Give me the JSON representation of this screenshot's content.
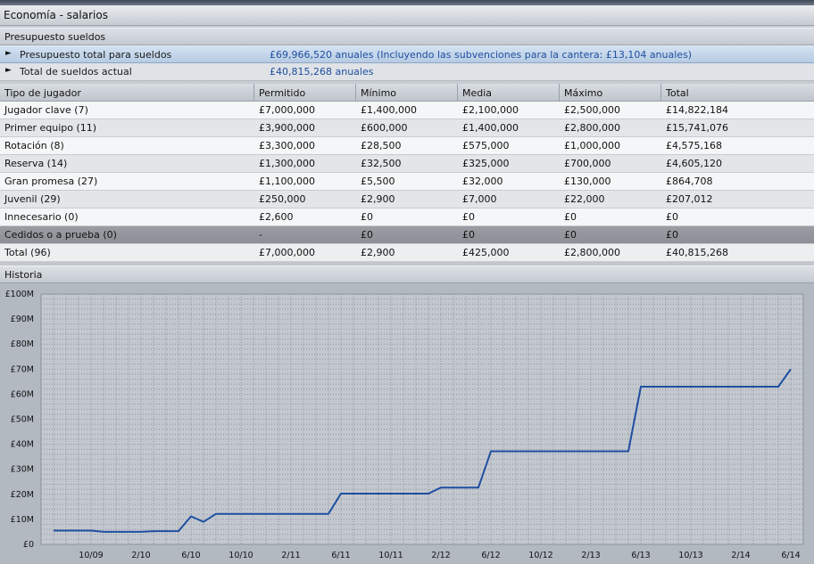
{
  "window": {
    "title": "Economía - salarios"
  },
  "budget": {
    "header": "Presupuesto sueldos",
    "rows": [
      {
        "label": "Presupuesto total para sueldos",
        "value": "£69,966,520 anuales (Incluyendo las subvenciones para la cantera: £13,104 anuales)"
      },
      {
        "label": "Total de sueldos actual",
        "value": "£40,815,268 anuales"
      }
    ]
  },
  "table": {
    "columns": [
      "Tipo de jugador",
      "Permitido",
      "Mínimo",
      "Media",
      "Máximo",
      "Total"
    ],
    "rows": [
      [
        "Jugador clave (7)",
        "£7,000,000",
        "£1,400,000",
        "£2,100,000",
        "£2,500,000",
        "£14,822,184"
      ],
      [
        "Primer equipo (11)",
        "£3,900,000",
        "£600,000",
        "£1,400,000",
        "£2,800,000",
        "£15,741,076"
      ],
      [
        "Rotación (8)",
        "£3,300,000",
        "£28,500",
        "£575,000",
        "£1,000,000",
        "£4,575,168"
      ],
      [
        "Reserva (14)",
        "£1,300,000",
        "£32,500",
        "£325,000",
        "£700,000",
        "£4,605,120"
      ],
      [
        "Gran promesa (27)",
        "£1,100,000",
        "£5,500",
        "£32,000",
        "£130,000",
        "£864,708"
      ],
      [
        "Juvenil (29)",
        "£250,000",
        "£2,900",
        "£7,000",
        "£22,000",
        "£207,012"
      ],
      [
        "Innecesario (0)",
        "£2,600",
        "£0",
        "£0",
        "£0",
        "£0"
      ],
      [
        "Cedidos o a prueba (0)",
        "-",
        "£0",
        "£0",
        "£0",
        "£0"
      ],
      [
        "Total  (96)",
        "£7,000,000",
        "£2,900",
        "£425,000",
        "£2,800,000",
        "£40,815,268"
      ]
    ]
  },
  "history": {
    "header": "Historia"
  },
  "colors": {
    "line": "#1f4fa0",
    "selected_row": "#c7d8ec",
    "value_text": "#1f4fa0"
  },
  "chart_data": {
    "type": "line",
    "title": "",
    "xlabel": "",
    "ylabel": "",
    "ylim": [
      0,
      100
    ],
    "y_unit": "£M",
    "y_tick_labels": [
      "£0",
      "£10M",
      "£20M",
      "£30M",
      "£40M",
      "£50M",
      "£60M",
      "£70M",
      "£80M",
      "£90M",
      "£100M"
    ],
    "x_tick_labels": [
      "10/09",
      "2/10",
      "6/10",
      "10/10",
      "2/11",
      "6/11",
      "10/11",
      "2/12",
      "6/12",
      "10/12",
      "2/13",
      "6/13",
      "10/13",
      "2/14",
      "6/14"
    ],
    "grid": true,
    "series": [
      {
        "values": [
          {
            "x": "2009-07",
            "y": 5.5
          },
          {
            "x": "2009-09",
            "y": 5.5
          },
          {
            "x": "2009-10",
            "y": 5.5
          },
          {
            "x": "2009-11",
            "y": 5.0
          },
          {
            "x": "2010-02",
            "y": 5.0
          },
          {
            "x": "2010-03",
            "y": 5.3
          },
          {
            "x": "2010-05",
            "y": 5.3
          },
          {
            "x": "2010-06",
            "y": 11.2
          },
          {
            "x": "2010-07",
            "y": 9.0
          },
          {
            "x": "2010-08",
            "y": 12.2
          },
          {
            "x": "2011-05",
            "y": 12.2
          },
          {
            "x": "2011-06",
            "y": 20.3
          },
          {
            "x": "2012-01",
            "y": 20.3
          },
          {
            "x": "2012-02",
            "y": 22.7
          },
          {
            "x": "2012-05",
            "y": 22.7
          },
          {
            "x": "2012-06",
            "y": 37.2
          },
          {
            "x": "2013-05",
            "y": 37.2
          },
          {
            "x": "2013-06",
            "y": 63.0
          },
          {
            "x": "2014-05",
            "y": 63.0
          },
          {
            "x": "2014-06",
            "y": 70.0
          }
        ]
      }
    ]
  }
}
